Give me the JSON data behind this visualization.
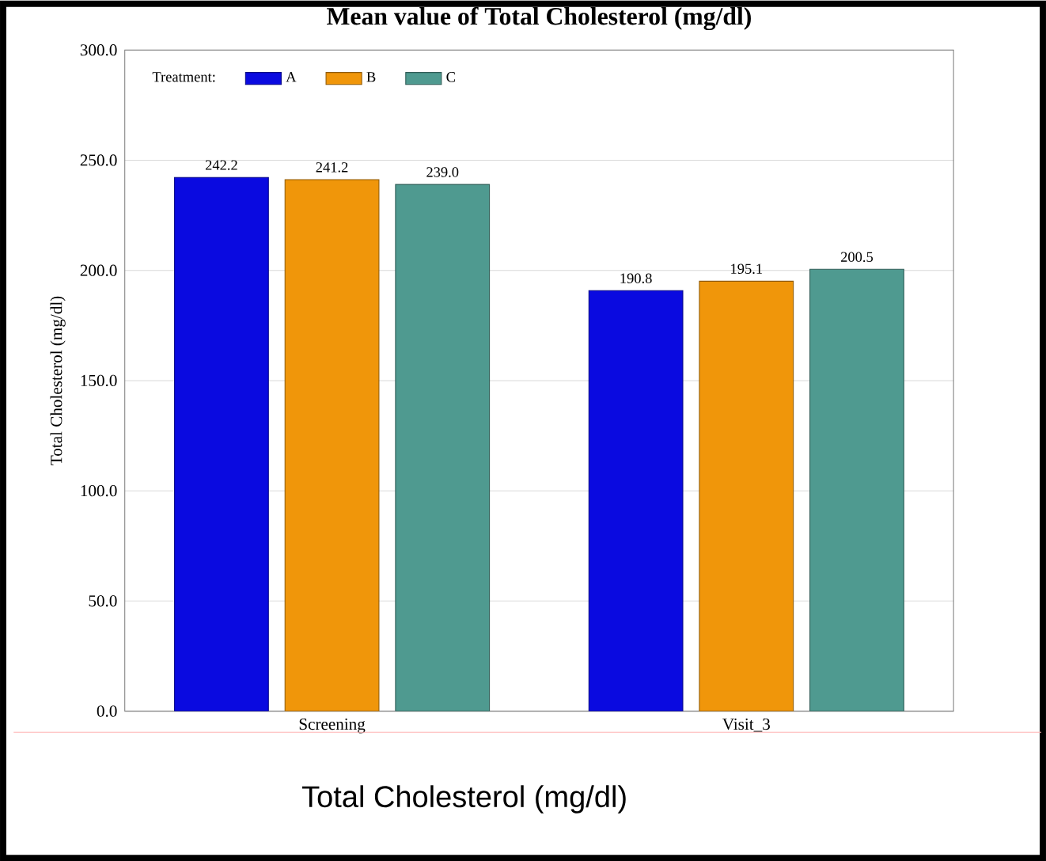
{
  "chart_data": {
    "type": "bar",
    "title": "Mean value of Total Cholesterol (mg/dl)",
    "ylabel": "Total Cholesterol (mg/dl)",
    "legend_title": "Treatment:",
    "categories": [
      "Screening",
      "Visit_3"
    ],
    "series": [
      {
        "name": "A",
        "color": "#0a0ae0",
        "values": [
          242.2,
          190.8
        ],
        "value_labels": [
          "242.2",
          "190.8"
        ]
      },
      {
        "name": "B",
        "color": "#f0960a",
        "values": [
          241.2,
          195.1
        ],
        "value_labels": [
          "241.2",
          "195.1"
        ]
      },
      {
        "name": "C",
        "color": "#4f9a90",
        "values": [
          239.0,
          200.5
        ],
        "value_labels": [
          "239.0",
          "200.5"
        ]
      }
    ],
    "ylim": [
      0,
      300
    ],
    "yticks": [
      {
        "value": 0,
        "label": "0.0"
      },
      {
        "value": 50,
        "label": "50.0"
      },
      {
        "value": 100,
        "label": "100.0"
      },
      {
        "value": 150,
        "label": "150.0"
      },
      {
        "value": 200,
        "label": "200.0"
      },
      {
        "value": 250,
        "label": "250.0"
      },
      {
        "value": 300,
        "label": "300.0"
      }
    ],
    "grid": "y",
    "legend": "top left",
    "annotations": [
      "Total Cholesterol (mg/dl)"
    ]
  }
}
